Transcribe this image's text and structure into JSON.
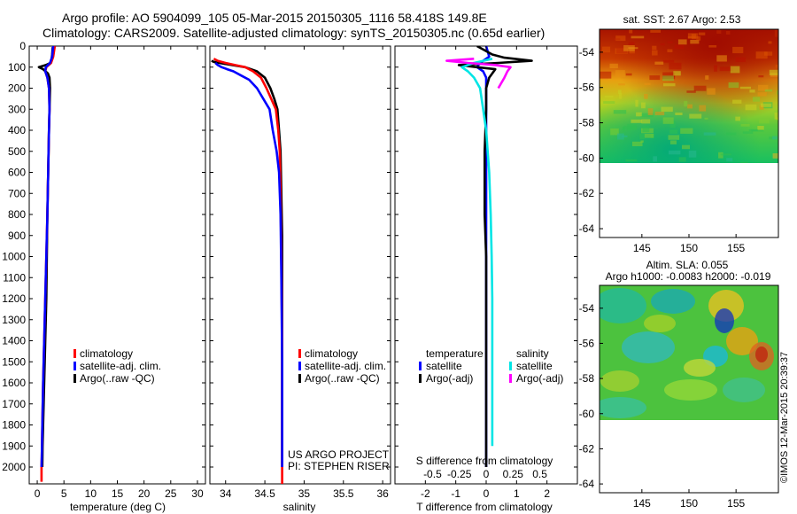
{
  "header": {
    "line1": "Argo profile: AO 5904099_105 05-Mar-2015 20150305_1116 58.418S 149.8E",
    "line2": "Climatology: CARS2009. Satellite-adjusted climatology: synTS_20150305.nc (0.65d earlier)"
  },
  "stamp": "©IMOS 12-Mar-2015 20:39:37",
  "colors": {
    "climatology": "#ff0000",
    "satellite": "#0000ff",
    "argo": "#000000",
    "sal_satellite": "#00e5e5",
    "sal_argo": "#ff00ff"
  },
  "chart_data": [
    {
      "type": "line",
      "id": "temperature",
      "xlabel": "temperature (deg C)",
      "xlim": [
        -1.5,
        31.5
      ],
      "xticks": [
        0,
        5,
        10,
        15,
        20,
        25,
        30
      ],
      "ylim": [
        0,
        2080
      ],
      "yticks": [
        0,
        100,
        200,
        300,
        400,
        500,
        600,
        700,
        800,
        900,
        1000,
        1100,
        1200,
        1300,
        1400,
        1500,
        1600,
        1700,
        1800,
        1900,
        2000
      ],
      "legend": [
        "climatology",
        "satellite-adj. clim.",
        "Argo(..raw -QC)"
      ],
      "series": [
        {
          "name": "Argo(..raw -QC)",
          "color": "#000000",
          "x": [
            2.9,
            2.8,
            2.7,
            2.5,
            1.6,
            0.3,
            1.1,
            2.0,
            2.3,
            2.4,
            2.3,
            2.2,
            2.05,
            1.9,
            1.8,
            1.7,
            1.6,
            1.5,
            1.4,
            1.3,
            1.2,
            1.1,
            1.0,
            0.95
          ],
          "y": [
            5,
            40,
            60,
            80,
            90,
            100,
            110,
            130,
            150,
            200,
            300,
            400,
            600,
            800,
            1000,
            1200,
            1300,
            1400,
            1500,
            1600,
            1700,
            1800,
            1900,
            2000
          ]
        },
        {
          "name": "climatology",
          "color": "#ff0000",
          "x": [
            3.3,
            3.0,
            2.6,
            1.7,
            1.5,
            1.9,
            2.2,
            2.3,
            2.2,
            2.05,
            1.9,
            1.7,
            1.5,
            1.3,
            1.1,
            0.95,
            0.85,
            0.8,
            0.8
          ],
          "y": [
            0,
            50,
            80,
            100,
            120,
            150,
            200,
            300,
            400,
            600,
            800,
            1000,
            1200,
            1400,
            1600,
            1800,
            1950,
            2000,
            2070
          ]
        },
        {
          "name": "satellite-adj. clim.",
          "color": "#0000ff",
          "x": [
            3.0,
            2.8,
            2.4,
            1.6,
            1.5,
            1.9,
            2.2,
            2.3,
            2.2,
            2.05,
            1.9,
            1.7,
            1.5,
            1.3,
            1.1,
            0.95,
            0.85,
            0.8
          ],
          "y": [
            0,
            50,
            80,
            100,
            120,
            150,
            200,
            300,
            400,
            600,
            800,
            1000,
            1200,
            1400,
            1600,
            1800,
            1950,
            2000
          ]
        }
      ]
    },
    {
      "type": "line",
      "id": "salinity",
      "xlabel": "salinity",
      "xlim": [
        33.8,
        36.1
      ],
      "xticks": [
        34,
        34.5,
        35,
        35.5,
        36
      ],
      "xticklabels": [
        "34",
        "34.5",
        "35",
        "35.5",
        "36"
      ],
      "ylim": [
        0,
        2080
      ],
      "legend": [
        "climatology",
        "satellite-adj. clim.",
        "Argo(..raw -QC)"
      ],
      "annotation": [
        "US ARGO PROJECT",
        "PI: STEPHEN RISER"
      ],
      "series": [
        {
          "name": "Argo(..raw -QC)",
          "color": "#000000",
          "x": [
            33.82,
            33.85,
            33.92,
            34.08,
            34.25,
            34.4,
            34.5,
            34.57,
            34.62,
            34.66,
            34.68,
            34.7,
            34.71,
            34.72,
            34.72,
            34.72,
            34.72,
            34.72
          ],
          "y": [
            70,
            75,
            80,
            90,
            100,
            120,
            150,
            200,
            250,
            300,
            400,
            500,
            700,
            900,
            1200,
            1500,
            1800,
            2000
          ]
        },
        {
          "name": "climatology",
          "color": "#ff0000",
          "x": [
            33.85,
            33.9,
            34.0,
            34.12,
            34.25,
            34.35,
            34.45,
            34.52,
            34.58,
            34.64,
            34.67,
            34.69,
            34.7,
            34.71,
            34.72,
            34.72,
            34.72
          ],
          "y": [
            60,
            70,
            80,
            90,
            100,
            120,
            150,
            200,
            250,
            300,
            400,
            500,
            700,
            1000,
            1400,
            1800,
            2080
          ]
        },
        {
          "name": "satellite-adj. clim.",
          "color": "#0000ff",
          "x": [
            33.87,
            33.9,
            33.95,
            34.02,
            34.1,
            34.2,
            34.3,
            34.4,
            34.48,
            34.56,
            34.6,
            34.65,
            34.68,
            34.7,
            34.71,
            34.72,
            34.72
          ],
          "y": [
            80,
            90,
            100,
            110,
            120,
            140,
            160,
            200,
            250,
            300,
            400,
            500,
            600,
            800,
            1100,
            1500,
            2000
          ]
        }
      ]
    },
    {
      "type": "line",
      "id": "difference",
      "xlabel": "T difference from climatology",
      "xlabel_top": "S difference from climatology",
      "xlim": [
        -3,
        3
      ],
      "xticks": [
        -2,
        -1,
        0,
        1,
        2
      ],
      "xticks_top": [
        -0.5,
        -0.25,
        0,
        0.25,
        0.5
      ],
      "xticklabels_top": [
        "-0.5",
        "-0.25",
        "0",
        "0.25",
        "0.5"
      ],
      "ylim": [
        0,
        2080
      ],
      "legend_temperature": {
        "title": "temperature",
        "entries": [
          "satellite",
          "Argo(-adj)"
        ]
      },
      "legend_salinity": {
        "title": "salinity",
        "entries": [
          "satellite",
          "Argo(-adj)"
        ]
      },
      "series": [
        {
          "name": "temperature satellite",
          "color": "#0000ff",
          "x": [
            0,
            0.1,
            -0.2,
            -0.3,
            -0.1,
            0,
            0,
            0,
            0,
            0,
            0,
            0
          ],
          "y": [
            0,
            50,
            80,
            100,
            120,
            150,
            300,
            600,
            1000,
            1400,
            1800,
            2000
          ]
        },
        {
          "name": "temperature Argo(-adj)",
          "color": "#000000",
          "x": [
            -0.3,
            0.2,
            0.6,
            1.5,
            0.4,
            -0.9,
            -0.3,
            0.3,
            0.2,
            0.1,
            0,
            0,
            -0.05,
            -0.05,
            0,
            0,
            0,
            0
          ],
          "y": [
            0,
            40,
            55,
            70,
            80,
            90,
            100,
            110,
            130,
            150,
            200,
            300,
            500,
            800,
            1000,
            1400,
            1800,
            2000
          ]
        },
        {
          "name": "salinity satellite",
          "color": "#00e5e5",
          "x": [
            0.2,
            -0.4,
            -0.8,
            -0.6,
            -0.4,
            -0.2,
            -0.1,
            0,
            0.05,
            0.1,
            0.15,
            0.18,
            0.2,
            0.2,
            0.2
          ],
          "y": [
            60,
            80,
            100,
            120,
            150,
            200,
            300,
            400,
            500,
            600,
            800,
            1000,
            1200,
            1500,
            1900
          ]
        },
        {
          "name": "salinity Argo(-adj)",
          "color": "#ff00ff",
          "x": [
            -0.4,
            -1.3,
            -0.6,
            0.3,
            0.8,
            0.7,
            0.6,
            0.4
          ],
          "y": [
            60,
            70,
            80,
            90,
            100,
            120,
            150,
            200
          ]
        }
      ]
    },
    {
      "type": "heatmap",
      "id": "sst_map",
      "title": "sat. SST: 2.67 Argo: 2.53",
      "xlim": [
        140.5,
        159.5
      ],
      "ylim": [
        -64.5,
        -52.7
      ],
      "data_ylim": [
        -60,
        -52.7
      ],
      "xticks": [
        145,
        150,
        155
      ],
      "yticks": [
        -54,
        -56,
        -58,
        -60,
        -62,
        -64
      ]
    },
    {
      "type": "heatmap",
      "id": "sla_map",
      "title": "Altim. SLA: 0.055",
      "subtitle": "Argo h1000: -0.0083 h2000: -0.019",
      "xlim": [
        140.5,
        159.5
      ],
      "ylim": [
        -64.5,
        -52.7
      ],
      "data_ylim": [
        -60,
        -52.7
      ],
      "xticks": [
        145,
        150,
        155
      ],
      "yticks": [
        -54,
        -56,
        -58,
        -60,
        -62,
        -64
      ]
    }
  ]
}
